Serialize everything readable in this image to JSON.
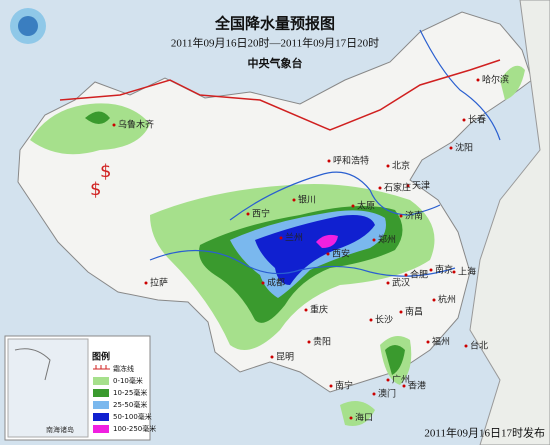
{
  "header": {
    "title": "全国降水量预报图",
    "period": "2011年09月16日20时—2011年09月17日20时",
    "issuer": "中央气象台"
  },
  "cities": [
    {
      "label": "乌鲁木齐"
    },
    {
      "label": "哈尔滨"
    },
    {
      "label": "长春"
    },
    {
      "label": "沈阳"
    },
    {
      "label": "呼和浩特"
    },
    {
      "label": "北京"
    },
    {
      "label": "天津"
    },
    {
      "label": "石家庄"
    },
    {
      "label": "太原"
    },
    {
      "label": "银川"
    },
    {
      "label": "济南"
    },
    {
      "label": "西宁"
    },
    {
      "label": "兰州"
    },
    {
      "label": "郑州"
    },
    {
      "label": "西安"
    },
    {
      "label": "合肥"
    },
    {
      "label": "南京"
    },
    {
      "label": "上海"
    },
    {
      "label": "成都"
    },
    {
      "label": "武汉"
    },
    {
      "label": "杭州"
    },
    {
      "label": "拉萨"
    },
    {
      "label": "重庆"
    },
    {
      "label": "长沙"
    },
    {
      "label": "南昌"
    },
    {
      "label": "贵阳"
    },
    {
      "label": "福州"
    },
    {
      "label": "昆明"
    },
    {
      "label": "台北"
    },
    {
      "label": "广州"
    },
    {
      "label": "香港"
    },
    {
      "label": "南宁"
    },
    {
      "label": "澳门"
    },
    {
      "label": "海口"
    }
  ],
  "legend": {
    "title": "图例",
    "frost_line": "霜冻线",
    "items": [
      {
        "label": "0-10毫米",
        "color": "#a6e08c"
      },
      {
        "label": "10-25毫米",
        "color": "#3a9a2e"
      },
      {
        "label": "25-50毫米",
        "color": "#7ab8ee"
      },
      {
        "label": "50-100毫米",
        "color": "#1020d0"
      },
      {
        "label": "100-250毫米",
        "color": "#f020e0"
      }
    ]
  },
  "inset_label": "南海诸岛",
  "footer": "2011年09月16日17时发布"
}
